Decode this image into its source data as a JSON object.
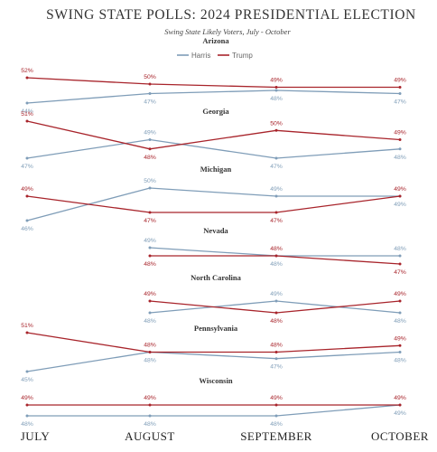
{
  "chart_data": {
    "type": "line",
    "title": "SWING STATE POLLS: 2024 PRESIDENTIAL ELECTION",
    "subtitle": "Swing State Likely Voters, July - October",
    "categories": [
      "JULY",
      "AUGUST",
      "SEPTEMBER",
      "OCTOBER"
    ],
    "legend": {
      "placement": "top-center"
    },
    "colors": {
      "Harris": "#7f9db8",
      "Trump": "#a8242b"
    },
    "panels": [
      {
        "state": "Arizona",
        "series": [
          {
            "name": "Harris",
            "values": [
              44,
              47,
              48,
              47
            ],
            "labels": [
              "44%",
              "47%",
              "48%",
              "47%"
            ]
          },
          {
            "name": "Trump",
            "values": [
              52,
              50,
              49,
              49
            ],
            "labels": [
              "52%",
              "50%",
              "49%",
              "49%"
            ]
          }
        ]
      },
      {
        "state": "Georgia",
        "series": [
          {
            "name": "Harris",
            "values": [
              47,
              49,
              47,
              48
            ],
            "labels": [
              "47%",
              "49%",
              "47%",
              "48%"
            ]
          },
          {
            "name": "Trump",
            "values": [
              51,
              48,
              50,
              49
            ],
            "labels": [
              "51%",
              "48%",
              "50%",
              "49%"
            ]
          }
        ]
      },
      {
        "state": "Michigan",
        "series": [
          {
            "name": "Harris",
            "values": [
              46,
              50,
              49,
              49
            ],
            "labels": [
              "46%",
              "50%",
              "49%",
              "49%"
            ]
          },
          {
            "name": "Trump",
            "values": [
              49,
              47,
              47,
              49
            ],
            "labels": [
              "49%",
              "47%",
              "47%",
              "49%"
            ]
          }
        ]
      },
      {
        "state": "Nevada",
        "series": [
          {
            "name": "Harris",
            "values": [
              null,
              49,
              48,
              48
            ],
            "labels": [
              null,
              "49%",
              "48%",
              "48%"
            ]
          },
          {
            "name": "Trump",
            "values": [
              null,
              48,
              48,
              47
            ],
            "labels": [
              null,
              "48%",
              "48%",
              "47%"
            ]
          }
        ]
      },
      {
        "state": "North Carolina",
        "series": [
          {
            "name": "Harris",
            "values": [
              null,
              48,
              49,
              48
            ],
            "labels": [
              null,
              "48%",
              "49%",
              "48%"
            ]
          },
          {
            "name": "Trump",
            "values": [
              null,
              49,
              48,
              49
            ],
            "labels": [
              null,
              "49%",
              "48%",
              "49%"
            ]
          }
        ]
      },
      {
        "state": "Pennsylvania",
        "series": [
          {
            "name": "Harris",
            "values": [
              45,
              48,
              47,
              48
            ],
            "labels": [
              "45%",
              "48%",
              "47%",
              "48%"
            ]
          },
          {
            "name": "Trump",
            "values": [
              51,
              48,
              48,
              49
            ],
            "labels": [
              "51%",
              "48%",
              "48%",
              "49%"
            ]
          }
        ]
      },
      {
        "state": "Wisconsin",
        "series": [
          {
            "name": "Harris",
            "values": [
              48,
              48,
              48,
              49
            ],
            "labels": [
              "48%",
              "48%",
              "48%",
              "49%"
            ]
          },
          {
            "name": "Trump",
            "values": [
              49,
              49,
              49,
              49
            ],
            "labels": [
              "49%",
              "49%",
              "49%",
              "49%"
            ]
          }
        ]
      }
    ]
  }
}
